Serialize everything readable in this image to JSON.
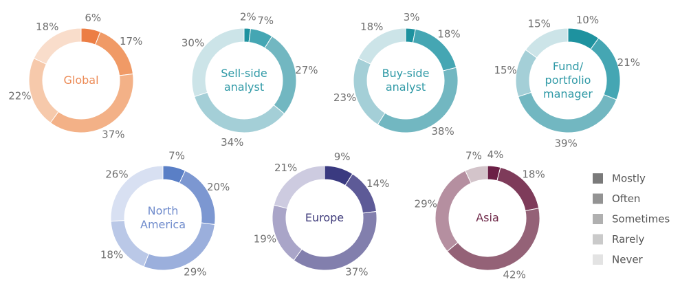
{
  "legend": {
    "items": [
      {
        "label": "Mostly",
        "swatch": "#7a7a7a"
      },
      {
        "label": "Often",
        "swatch": "#939393"
      },
      {
        "label": "Sometimes",
        "swatch": "#b0b0b0"
      },
      {
        "label": "Rarely",
        "swatch": "#cacaca"
      },
      {
        "label": "Never",
        "swatch": "#e3e3e3"
      }
    ]
  },
  "chart_data": [
    {
      "type": "pie",
      "label": "Global",
      "label_color": "#ec8a55",
      "categories": [
        "Mostly",
        "Often",
        "Sometimes",
        "Rarely",
        "Never"
      ],
      "values": [
        6,
        17,
        37,
        22,
        18
      ],
      "value_labels": [
        "6%",
        "17%",
        "37%",
        "22%",
        "18%"
      ],
      "colors": [
        "#ec7e45",
        "#f09a66",
        "#f3b187",
        "#f6c9ab",
        "#f9ddcb"
      ]
    },
    {
      "type": "pie",
      "label": "Sell-side analyst",
      "label_color": "#2f99a6",
      "categories": [
        "Mostly",
        "Often",
        "Sometimes",
        "Rarely",
        "Never"
      ],
      "values": [
        2,
        7,
        27,
        34,
        30
      ],
      "value_labels": [
        "2%",
        "7%",
        "27%",
        "34%",
        "30%"
      ],
      "colors": [
        "#1e929f",
        "#45a6b3",
        "#72b7c1",
        "#a4cfd7",
        "#cce4e8"
      ]
    },
    {
      "type": "pie",
      "label": "Buy-side analyst",
      "label_color": "#2f99a6",
      "categories": [
        "Mostly",
        "Often",
        "Sometimes",
        "Rarely",
        "Never"
      ],
      "values": [
        3,
        18,
        38,
        23,
        18
      ],
      "value_labels": [
        "3%",
        "18%",
        "38%",
        "23%",
        "18%"
      ],
      "colors": [
        "#1e929f",
        "#45a6b3",
        "#72b7c1",
        "#a4cfd7",
        "#cce4e8"
      ]
    },
    {
      "type": "pie",
      "label": "Fund/ portfolio manager",
      "label_color": "#2f99a6",
      "categories": [
        "Mostly",
        "Often",
        "Sometimes",
        "Rarely",
        "Never"
      ],
      "values": [
        10,
        21,
        39,
        15,
        15
      ],
      "value_labels": [
        "10%",
        "21%",
        "39%",
        "15%",
        "15%"
      ],
      "colors": [
        "#1e929f",
        "#45a6b3",
        "#72b7c1",
        "#a4cfd7",
        "#cce4e8"
      ]
    },
    {
      "type": "pie",
      "label": "North America",
      "label_color": "#6f8bcc",
      "categories": [
        "Mostly",
        "Often",
        "Sometimes",
        "Rarely",
        "Never"
      ],
      "values": [
        7,
        20,
        29,
        18,
        26
      ],
      "value_labels": [
        "7%",
        "20%",
        "29%",
        "18%",
        "26%"
      ],
      "colors": [
        "#5a7fc6",
        "#7c97d1",
        "#9bafdc",
        "#bac8e7",
        "#d8e0f2"
      ]
    },
    {
      "type": "pie",
      "label": "Europe",
      "label_color": "#3e3a7a",
      "categories": [
        "Mostly",
        "Often",
        "Sometimes",
        "Rarely",
        "Never"
      ],
      "values": [
        9,
        14,
        37,
        19,
        21
      ],
      "value_labels": [
        "9%",
        "14%",
        "37%",
        "19%",
        "21%"
      ],
      "colors": [
        "#3a3a80",
        "#5d5a97",
        "#827fad",
        "#a9a5c8",
        "#cdcbe0"
      ]
    },
    {
      "type": "pie",
      "label": "Asia",
      "label_color": "#6e2848",
      "categories": [
        "Mostly",
        "Often",
        "Sometimes",
        "Rarely",
        "Never"
      ],
      "values": [
        4,
        18,
        42,
        29,
        7
      ],
      "value_labels": [
        "4%",
        "18%",
        "42%",
        "29%",
        "7%"
      ],
      "colors": [
        "#6b1f45",
        "#7e3b5a",
        "#946277",
        "#b58fa0",
        "#d3c4ca"
      ]
    }
  ]
}
